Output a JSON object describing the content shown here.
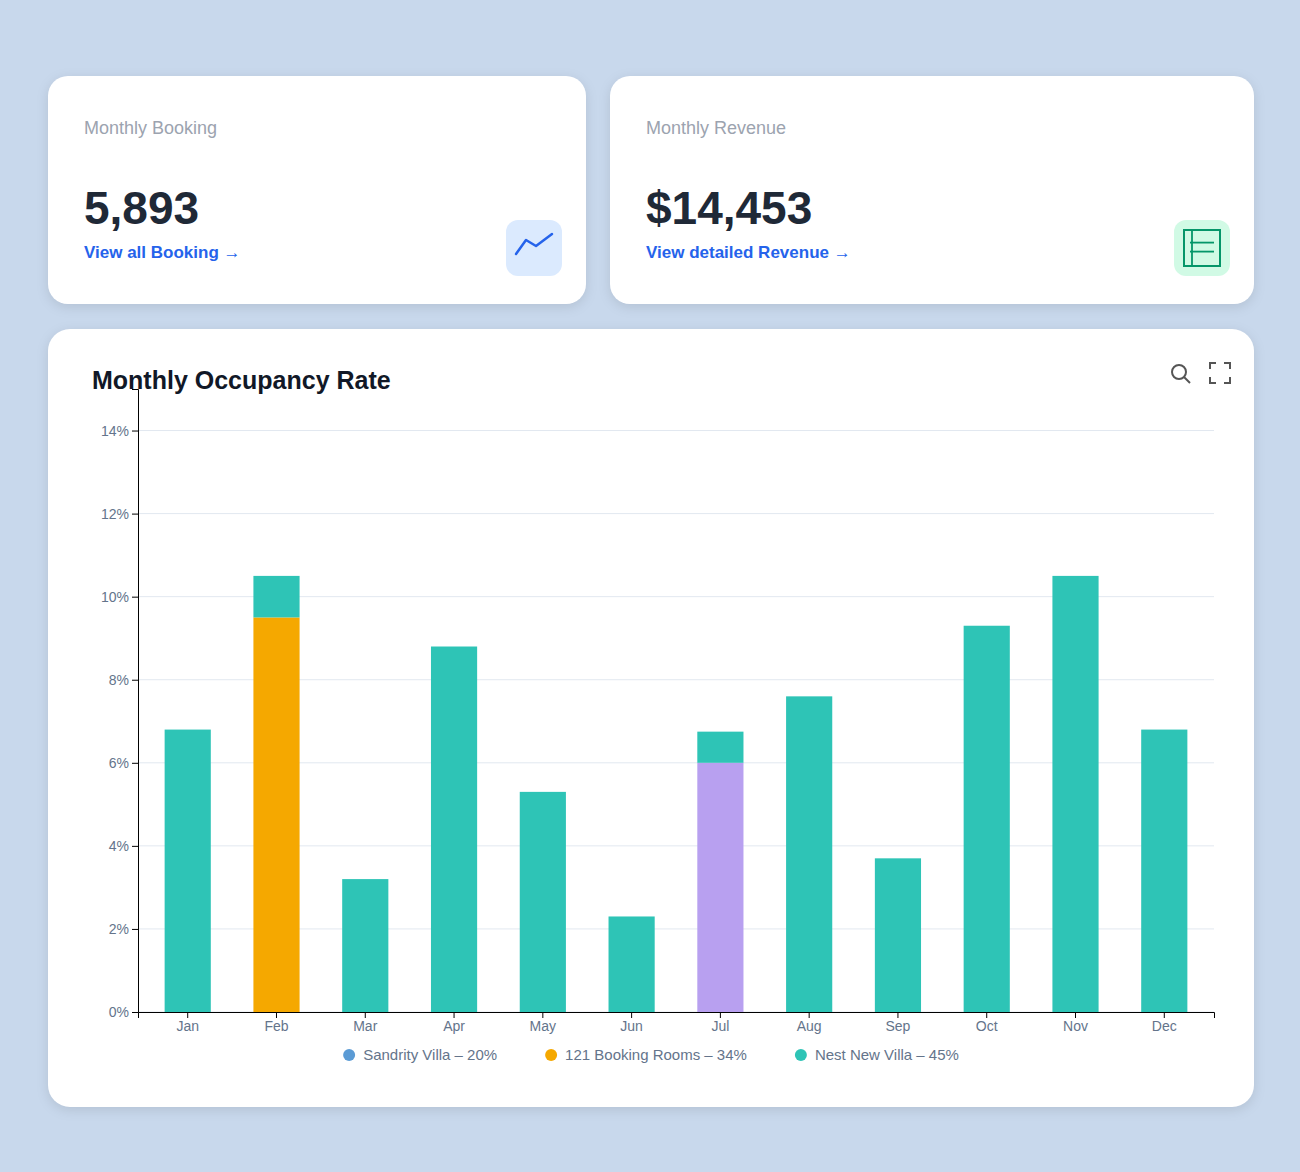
{
  "cards": [
    {
      "label": "Monthly Booking",
      "value": "5,893",
      "link": "View all Booking →"
    },
    {
      "label": "Monthly Revenue",
      "value": "$14,453",
      "link": "View detailed Revenue →"
    }
  ],
  "chart_data": {
    "type": "bar",
    "title": "Monthly Occupancy Rate",
    "categories": [
      "Jan",
      "Feb",
      "Mar",
      "Apr",
      "May",
      "Jun",
      "Jul",
      "Aug",
      "Sep",
      "Oct",
      "Nov",
      "Dec"
    ],
    "stacked": true,
    "series": [
      {
        "name": "Sandrity Villa – 20%",
        "color": "#5b9bd5",
        "values": [
          null,
          null,
          null,
          null,
          null,
          null,
          null,
          null,
          null,
          null,
          null,
          null
        ]
      },
      {
        "name": "121 Booking Rooms – 34%",
        "color": "#f5a800",
        "values": [
          null,
          9.5,
          null,
          null,
          null,
          null,
          null,
          null,
          null,
          null,
          null,
          null
        ]
      },
      {
        "color": "#b8a0f0",
        "values": [
          null,
          null,
          null,
          null,
          null,
          null,
          6.0,
          null,
          null,
          null,
          null,
          null
        ]
      },
      {
        "name": "Nest New Villa – 45%",
        "color": "#2ec4b6",
        "values": [
          6.8,
          1.0,
          3.2,
          8.8,
          5.3,
          2.3,
          0.75,
          7.6,
          3.7,
          9.3,
          10.5,
          6.8
        ]
      }
    ],
    "ylim": [
      0,
      15
    ],
    "yticks": [
      {
        "value": 0,
        "label": "0%"
      },
      {
        "value": 2,
        "label": "2%"
      },
      {
        "value": 4,
        "label": "4%"
      },
      {
        "value": 6,
        "label": "6%"
      },
      {
        "value": 8,
        "label": "8%"
      },
      {
        "value": 10,
        "label": "10%"
      },
      {
        "value": 12,
        "label": "12%"
      },
      {
        "value": 14,
        "label": "14%"
      }
    ],
    "grid": true
  }
}
